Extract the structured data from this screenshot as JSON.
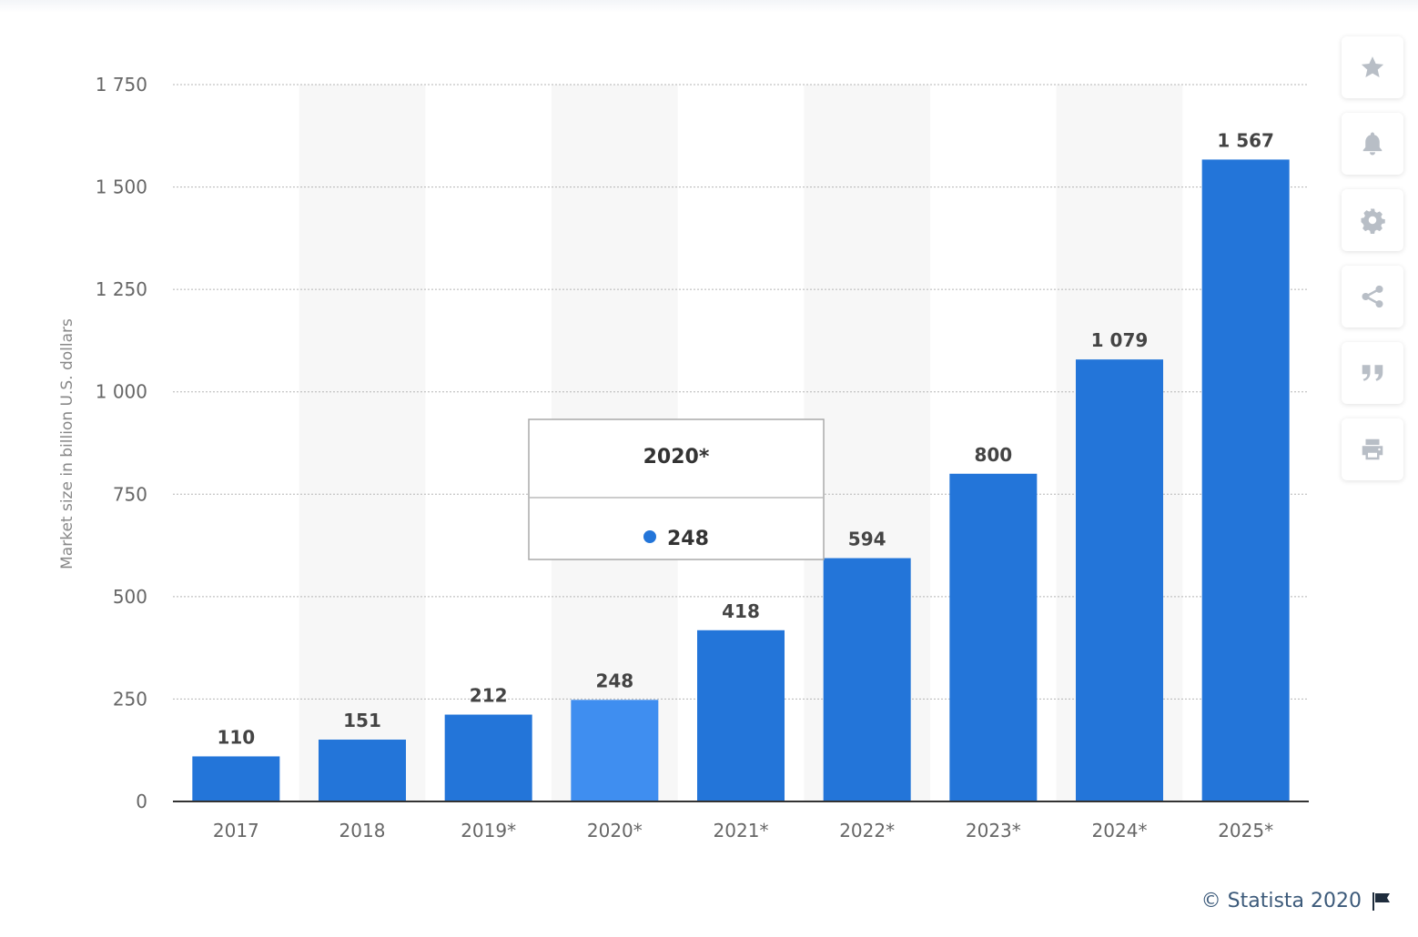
{
  "chart_data": {
    "type": "bar",
    "categories": [
      "2017",
      "2018",
      "2019*",
      "2020*",
      "2021*",
      "2022*",
      "2023*",
      "2024*",
      "2025*"
    ],
    "values": [
      110,
      151,
      212,
      248,
      418,
      594,
      800,
      1079,
      1567
    ],
    "value_labels": [
      "110",
      "151",
      "212",
      "248",
      "418",
      "594",
      "800",
      "1 079",
      "1 567"
    ],
    "ylabel": "Market size in billion U.S. dollars",
    "ylim": [
      0,
      1750
    ],
    "yticks": [
      0,
      250,
      500,
      750,
      1000,
      1250,
      1500,
      1750
    ],
    "ytick_labels": [
      "0",
      "250",
      "500",
      "750",
      "1 000",
      "1 250",
      "1 500",
      "1 750"
    ],
    "grid": true,
    "highlighted_category": "2020*",
    "bar_color": "#2375d9",
    "highlight_color": "#3f8ef0"
  },
  "tooltip": {
    "title": "2020*",
    "value": "248",
    "dot_color": "#2375d9"
  },
  "toolbar": {
    "items": [
      {
        "icon": "star-icon",
        "label": "favorite"
      },
      {
        "icon": "bell-icon",
        "label": "notifications"
      },
      {
        "icon": "gear-icon",
        "label": "settings"
      },
      {
        "icon": "share-icon",
        "label": "share"
      },
      {
        "icon": "quote-icon",
        "label": "cite"
      },
      {
        "icon": "print-icon",
        "label": "print"
      }
    ]
  },
  "credit": {
    "text": "© Statista 2020"
  }
}
